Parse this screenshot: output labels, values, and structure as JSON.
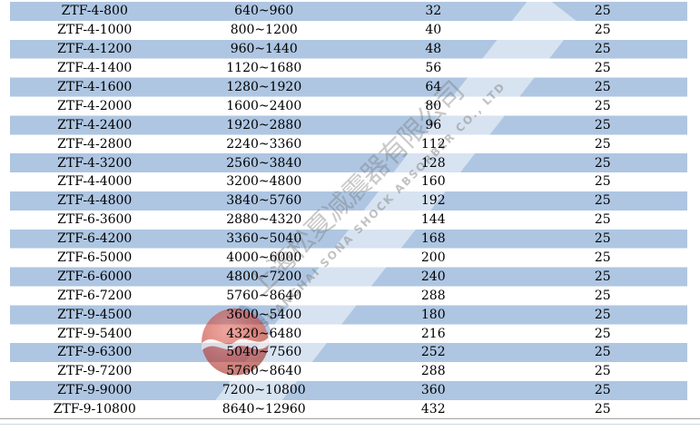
{
  "table": {
    "rows": [
      [
        "ZTF-4-800",
        "640~960",
        "32",
        "25"
      ],
      [
        "ZTF-4-1000",
        "800~1200",
        "40",
        "25"
      ],
      [
        "ZTF-4-1200",
        "960~1440",
        "48",
        "25"
      ],
      [
        "ZTF-4-1400",
        "1120~1680",
        "56",
        "25"
      ],
      [
        "ZTF-4-1600",
        "1280~1920",
        "64",
        "25"
      ],
      [
        "ZTF-4-2000",
        "1600~2400",
        "80",
        "25"
      ],
      [
        "ZTF-4-2400",
        "1920~2880",
        "96",
        "25"
      ],
      [
        "ZTF-4-2800",
        "2240~3360",
        "112",
        "25"
      ],
      [
        "ZTF-4-3200",
        "2560~3840",
        "128",
        "25"
      ],
      [
        "ZTF-4-4000",
        "3200~4800",
        "160",
        "25"
      ],
      [
        "ZTF-4-4800",
        "3840~5760",
        "192",
        "25"
      ],
      [
        "ZTF-6-3600",
        "2880~4320",
        "144",
        "25"
      ],
      [
        "ZTF-6-4200",
        "3360~5040",
        "168",
        "25"
      ],
      [
        "ZTF-6-5000",
        "4000~6000",
        "200",
        "25"
      ],
      [
        "ZTF-6-6000",
        "4800~7200",
        "240",
        "25"
      ],
      [
        "ZTF-6-7200",
        "5760~8640",
        "288",
        "25"
      ],
      [
        "ZTF-9-4500",
        "3600~5400",
        "180",
        "25"
      ],
      [
        "ZTF-9-5400",
        "4320~6480",
        "216",
        "25"
      ],
      [
        "ZTF-9-6300",
        "5040~7560",
        "252",
        "25"
      ],
      [
        "ZTF-9-7200",
        "5760~8640",
        "288",
        "25"
      ],
      [
        "ZTF-9-9000",
        "7200~10800",
        "360",
        "25"
      ],
      [
        "ZTF-9-10800",
        "8640~12960",
        "432",
        "25"
      ]
    ]
  },
  "watermark": {
    "chinese": "上海松夏减震器有限公司",
    "english": "SHANGHAI SONA SHOCK ABSORBER CO., LTD",
    "registered": "®"
  },
  "colors": {
    "row_blue": "#aec6e2",
    "row_white": "#ffffff",
    "logo_red": "#c23327",
    "logo_red_light": "#e2695a",
    "logo_blue_arc": "#6d86b4"
  }
}
